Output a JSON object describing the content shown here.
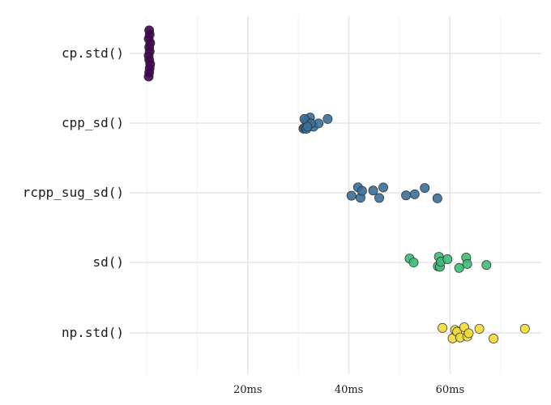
{
  "chart_data": {
    "type": "scatter",
    "title": "",
    "xlabel": "",
    "ylabel": "",
    "x_unit_suffix": "ms",
    "xlim": [
      0,
      78
    ],
    "x_ticks": [
      20,
      40,
      60
    ],
    "x_tick_labels": [
      "20ms",
      "40ms",
      "60ms"
    ],
    "grid": true,
    "legend": "none",
    "categories": [
      "cp.std()",
      "cpp_sd()",
      "rcpp_sug_sd()",
      "sd()",
      "np.std()"
    ],
    "series": [
      {
        "category": "cp.std()",
        "color": "#440154",
        "values": [
          0.5,
          0.6,
          0.4,
          0.7,
          0.5,
          0.6,
          0.4,
          0.5,
          0.7,
          0.6,
          0.5,
          0.4
        ]
      },
      {
        "category": "cpp_sd()",
        "color": "#3b6f99",
        "values": [
          31.0,
          31.5,
          32.0,
          31.3,
          32.3,
          33.0,
          34.0,
          35.8,
          31.6,
          31.2,
          32.5,
          31.8
        ]
      },
      {
        "category": "rcpp_sug_sd()",
        "color": "#3b6f99",
        "values": [
          40.5,
          41.8,
          42.3,
          42.6,
          44.8,
          46.0,
          46.8,
          51.3,
          53.0,
          55.0,
          57.5
        ]
      },
      {
        "category": "sd()",
        "color": "#3dbb75",
        "values": [
          52.0,
          52.8,
          57.6,
          57.8,
          58.0,
          58.2,
          59.5,
          61.8,
          63.2,
          63.4,
          67.2
        ]
      },
      {
        "category": "np.std()",
        "color": "#f1dc36",
        "values": [
          58.5,
          60.5,
          61.0,
          61.4,
          62.0,
          62.8,
          63.4,
          63.7,
          65.8,
          68.6,
          74.8
        ]
      }
    ]
  }
}
